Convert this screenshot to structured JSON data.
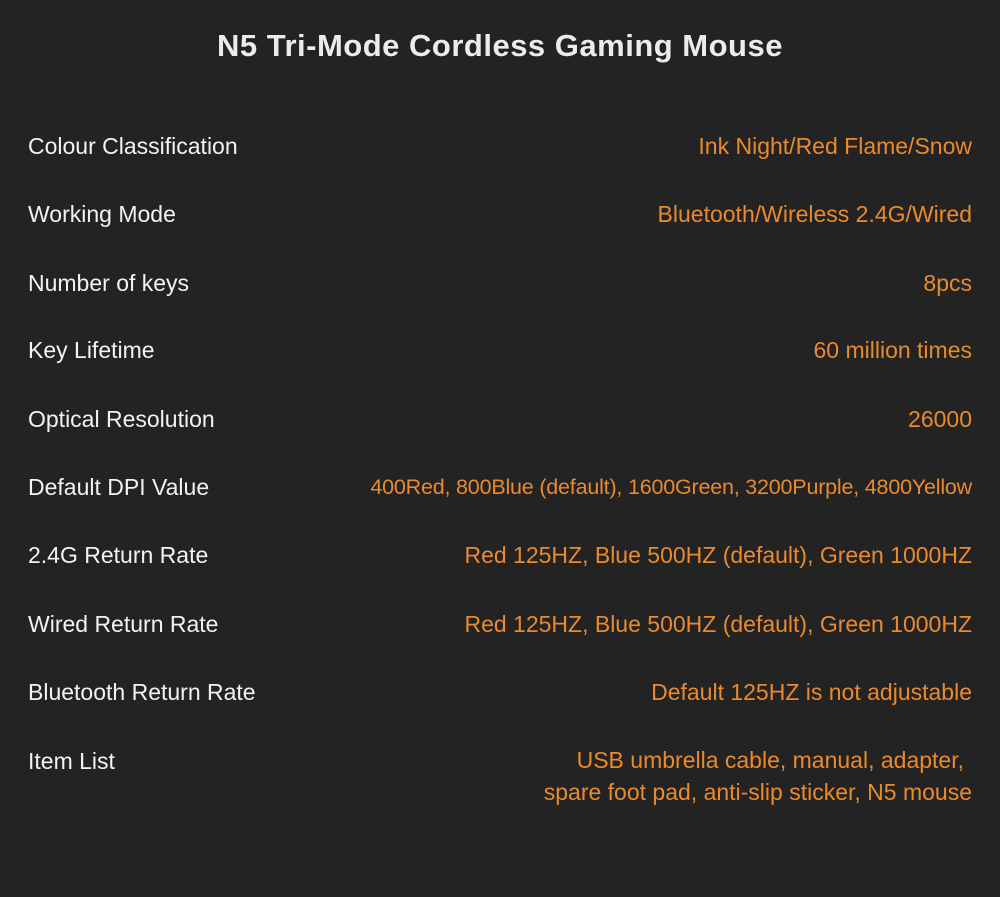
{
  "title": "N5 Tri-Mode Cordless Gaming Mouse",
  "accent_color": "#e98a2e",
  "label_color": "#f2f2f2",
  "background_color": "#232323",
  "specs": [
    {
      "label": "Colour Classification",
      "value": "Ink Night/Red Flame/Snow"
    },
    {
      "label": "Working Mode",
      "value": "Bluetooth/Wireless 2.4G/Wired"
    },
    {
      "label": "Number of keys",
      "value": "8pcs"
    },
    {
      "label": "Key Lifetime",
      "value": "60 million times"
    },
    {
      "label": "Optical Resolution",
      "value": "26000"
    },
    {
      "label": "Default DPI Value",
      "value": "400Red, 800Blue (default), 1600Green, 3200Purple, 4800Yellow"
    },
    {
      "label": "2.4G Return Rate",
      "value": "Red 125HZ, Blue 500HZ (default), Green 1000HZ"
    },
    {
      "label": "Wired Return Rate",
      "value": "Red 125HZ, Blue 500HZ (default), Green 1000HZ"
    },
    {
      "label": "Bluetooth Return Rate",
      "value": "Default 125HZ is not adjustable"
    },
    {
      "label": "Item List",
      "value_lines": [
        "USB umbrella cable, manual, adapter,",
        "spare foot pad, anti-slip sticker, N5 mouse"
      ]
    }
  ]
}
